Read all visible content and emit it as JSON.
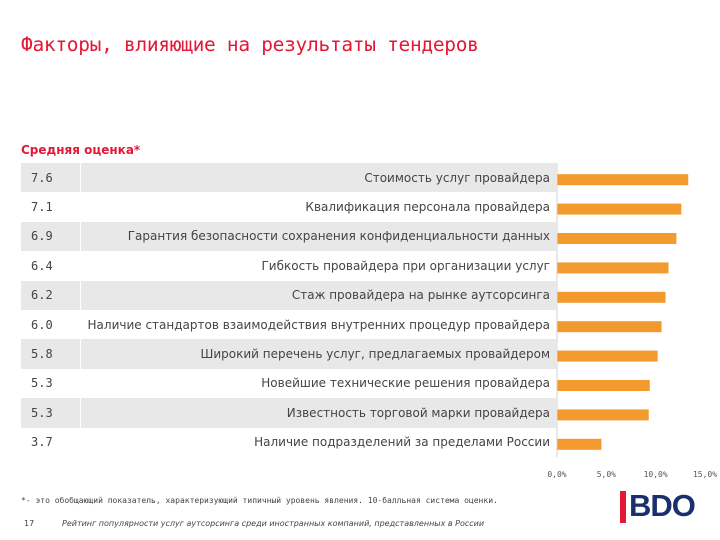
{
  "title": "Факторы, влияющие на результаты тендеров",
  "subtitle": "Средняя оценка*",
  "footnote": "*- это обобщающий показатель, характеризующий типичный уровень явления. 10-балльная система оценки.",
  "page_number": "17",
  "bottom_text": "Рейтинг популярности услуг аутсорсинга среди иностранных компаний, представленных в России",
  "logo_text": "BDO",
  "colors": {
    "accent": "#e31837",
    "bar": "#f29a2e",
    "row_shade": "#e8e8e8",
    "logo_blue": "#1b2f6e"
  },
  "rows": [
    {
      "value": "7.6",
      "label": "Стоимость услуг провайдера"
    },
    {
      "value": "7.1",
      "label": "Квалификация персонала провайдера"
    },
    {
      "value": "6.9",
      "label": "Гарантия безопасности сохранения конфиденциальности данных"
    },
    {
      "value": "6.4",
      "label": "Гибкость провайдера при организации услуг"
    },
    {
      "value": "6.2",
      "label": "Стаж провайдера на рынке аутсорсинга"
    },
    {
      "value": "6.0",
      "label": "Наличие стандартов взаимодействия внутренних процедур провайдера"
    },
    {
      "value": "5.8",
      "label": "Широкий перечень услуг, предлагаемых провайдером"
    },
    {
      "value": "5.3",
      "label": "Новейшие технические решения провайдера"
    },
    {
      "value": "5.3",
      "label": "Известность торговой марки провайдера"
    },
    {
      "value": "3.7",
      "label": "Наличие подразделений за пределами России"
    }
  ],
  "chart_data": {
    "type": "bar",
    "orientation": "horizontal",
    "categories": [
      "Стоимость услуг провайдера",
      "Квалификация персонала провайдера",
      "Гарантия безопасности сохранения конфиденциальности данных",
      "Гибкость провайдера при организации услуг",
      "Стаж провайдера на рынке аутсорсинга",
      "Наличие стандартов взаимодействия внутренних процедур провайдера",
      "Широкий перечень услуг, предлагаемых провайдером",
      "Новейшие технические решения провайдера",
      "Известность торговой марки провайдера",
      "Наличие подразделений за пределами России"
    ],
    "values": [
      13.3,
      12.6,
      12.1,
      11.3,
      11.0,
      10.6,
      10.2,
      9.4,
      9.3,
      4.5
    ],
    "xlim": [
      0,
      15
    ],
    "xticks": [
      "0,0%",
      "5,0%",
      "10,0%",
      "15,0%"
    ],
    "grid": false,
    "legend": "none"
  }
}
